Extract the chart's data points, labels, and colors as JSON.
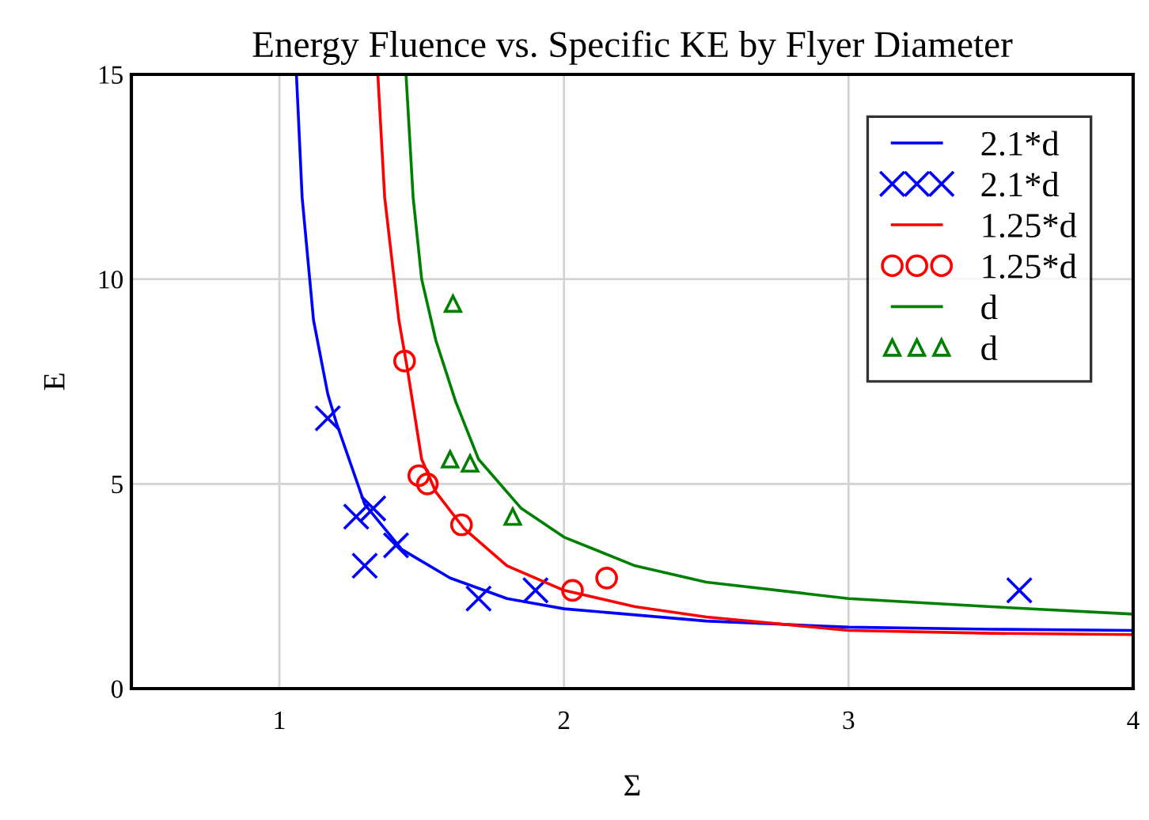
{
  "chart_data": {
    "type": "line",
    "title": "Energy Fluence vs. Specific KE by Flyer Diameter",
    "xlabel": "Σ",
    "ylabel": "E",
    "xlim": [
      0.48,
      4
    ],
    "ylim": [
      0,
      15
    ],
    "xticks": [
      1,
      2,
      3,
      4
    ],
    "yticks": [
      0,
      5,
      10,
      15
    ],
    "grid": true,
    "legend": "top right",
    "series": [
      {
        "name": "2.1*d",
        "color": "#0000ff",
        "marker": "none",
        "x": [
          1.06,
          1.08,
          1.12,
          1.17,
          1.2,
          1.3,
          1.43,
          1.6,
          1.8,
          2,
          2.5,
          3,
          3.5,
          4
        ],
        "values": [
          15,
          12,
          9,
          7.2,
          6.5,
          4.5,
          3.4,
          2.7,
          2.2,
          1.95,
          1.65,
          1.5,
          1.45,
          1.42
        ]
      },
      {
        "name": "2.1*d",
        "type": "scatter",
        "color": "#0000ff",
        "marker": "cross",
        "x": [
          1.17,
          1.27,
          1.33,
          1.3,
          1.41,
          1.7,
          1.9,
          3.6
        ],
        "values": [
          6.6,
          4.2,
          4.4,
          3,
          3.5,
          2.2,
          2.4,
          2.4
        ]
      },
      {
        "name": "1.25*d",
        "color": "#ff0000",
        "marker": "none",
        "x": [
          1.346,
          1.37,
          1.42,
          1.45,
          1.5,
          1.55,
          1.65,
          1.8,
          2,
          2.25,
          2.5,
          3,
          3.5,
          4
        ],
        "values": [
          15,
          12,
          9,
          7.8,
          5.6,
          4.8,
          3.9,
          3,
          2.4,
          2,
          1.75,
          1.42,
          1.35,
          1.32
        ]
      },
      {
        "name": "1.25*d",
        "type": "scatter",
        "color": "#ff0000",
        "marker": "circle",
        "x": [
          1.44,
          1.49,
          1.52,
          1.64,
          2.03,
          2.15
        ],
        "values": [
          8,
          5.2,
          5,
          4,
          2.4,
          2.7
        ]
      },
      {
        "name": "d",
        "color": "#008000",
        "marker": "none",
        "x": [
          1.445,
          1.47,
          1.5,
          1.55,
          1.62,
          1.7,
          1.85,
          2,
          2.25,
          2.5,
          3,
          3.5,
          4
        ],
        "values": [
          15,
          12,
          10,
          8.5,
          7,
          5.6,
          4.4,
          3.7,
          3,
          2.6,
          2.2,
          2,
          1.82
        ]
      },
      {
        "name": "d",
        "type": "scatter",
        "color": "#008000",
        "marker": "triangle",
        "x": [
          1.61,
          1.6,
          1.67,
          1.82
        ],
        "values": [
          9.4,
          5.6,
          5.5,
          4.2
        ]
      }
    ]
  }
}
